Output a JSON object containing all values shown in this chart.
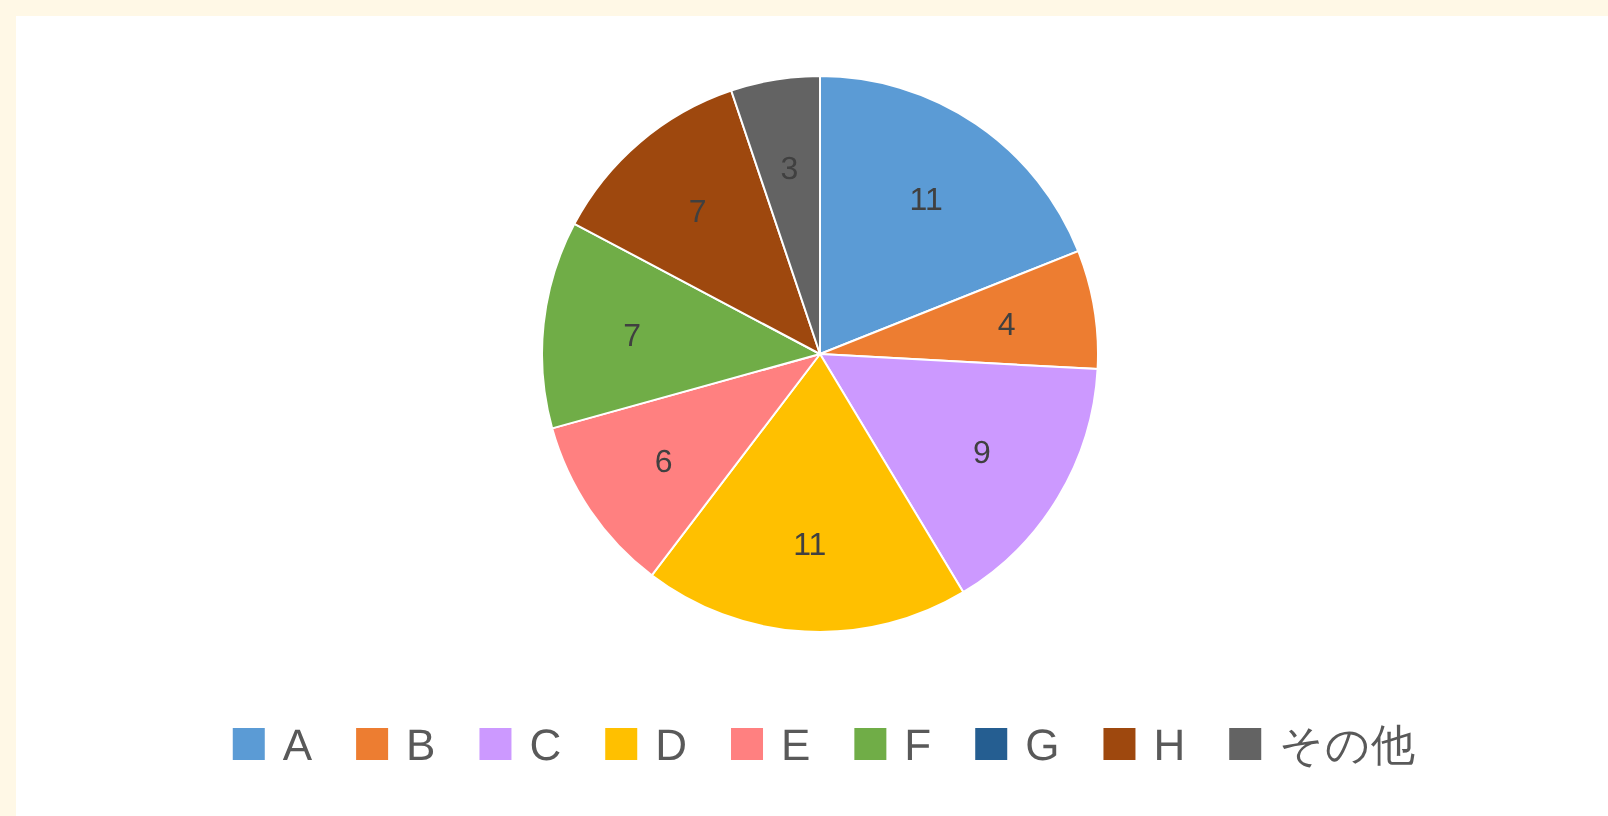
{
  "chart_data": {
    "type": "pie",
    "categories": [
      "A",
      "B",
      "C",
      "D",
      "E",
      "F",
      "G",
      "H",
      "その他"
    ],
    "values": [
      11,
      4,
      9,
      11,
      6,
      7,
      0,
      7,
      3
    ],
    "data_labels": true,
    "colors": [
      "#5b9bd5",
      "#ed7d31",
      "#cc99ff",
      "#ffc000",
      "#ff8080",
      "#70ad47",
      "#255e91",
      "#9e480e",
      "#636363"
    ],
    "legend": "bottom"
  }
}
